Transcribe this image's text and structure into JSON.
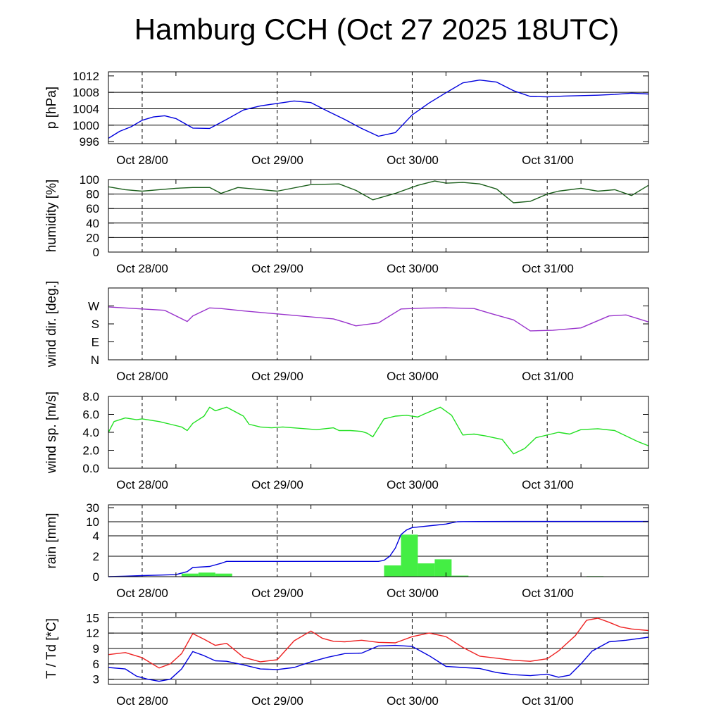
{
  "title": "Hamburg CCH (Oct 27 2025 18UTC)",
  "x_axis": {
    "ticks": [
      "Oct 28/00",
      "Oct 29/00",
      "Oct 30/00",
      "Oct 31/00"
    ],
    "start_hour": 0,
    "end_hour": 96,
    "note": "hours relative to Oct 27 18UTC"
  },
  "chart_data": [
    {
      "id": "pressure",
      "type": "line",
      "ylabel": "p [hPa]",
      "ylim": [
        995.5,
        1013
      ],
      "yticks": [
        996,
        1000,
        1004,
        1008,
        1012
      ],
      "ytick_labels": [
        "996",
        "1000",
        "1004",
        "1008",
        "1012"
      ],
      "hgrid": [
        1000,
        1004,
        1008
      ],
      "color": "#0000dd",
      "x": [
        0,
        2,
        4,
        6,
        8,
        10,
        12,
        15,
        18,
        21,
        24,
        27,
        30,
        33,
        36,
        39,
        42,
        45,
        48,
        51,
        54,
        57,
        60,
        63,
        66,
        69,
        72,
        75,
        78,
        81,
        84,
        87,
        90,
        93,
        96
      ],
      "y": [
        996.8,
        998.5,
        999.6,
        1001.2,
        1002.0,
        1002.3,
        1001.6,
        999.3,
        999.2,
        1001.4,
        1003.7,
        1004.7,
        1005.3,
        1005.9,
        1005.5,
        1003.4,
        1001.4,
        999.2,
        997.3,
        998.2,
        1002.5,
        1005.4,
        1007.9,
        1010.3,
        1011.0,
        1010.5,
        1008.4,
        1007.0,
        1006.9,
        1007.1,
        1007.2,
        1007.3,
        1007.5,
        1007.8,
        1007.6
      ]
    },
    {
      "id": "humidity",
      "type": "line",
      "ylabel": "humidity [%]",
      "ylim": [
        0,
        100
      ],
      "yticks": [
        0,
        20,
        40,
        60,
        80,
        100
      ],
      "ytick_labels": [
        "0",
        "20",
        "40",
        "60",
        "80",
        "100"
      ],
      "hgrid": [
        20,
        40,
        60,
        80
      ],
      "color": "#1a5e1a",
      "x": [
        0,
        3,
        6,
        9,
        12,
        15,
        18,
        20,
        23,
        26,
        30,
        36,
        41,
        44,
        47,
        51,
        55,
        58,
        60,
        63,
        66,
        69,
        72,
        75,
        78,
        80,
        84,
        87,
        90,
        93,
        96
      ],
      "y": [
        90,
        86,
        84,
        86,
        88,
        89,
        89,
        81,
        89,
        87,
        84,
        93,
        94,
        85,
        72,
        81,
        92,
        98,
        95,
        96,
        94,
        87,
        68,
        70,
        80,
        84,
        88,
        84,
        86,
        78,
        92
      ]
    },
    {
      "id": "wind_dir",
      "type": "line",
      "ylabel": "wind dir. [deg.]",
      "ylim": [
        0,
        360
      ],
      "yticks": [
        0,
        90,
        180,
        270
      ],
      "ytick_labels": [
        "N",
        "E",
        "S",
        "W"
      ],
      "hgrid": [],
      "color": "#9933cc",
      "x": [
        0,
        6,
        10,
        14,
        15,
        18,
        20,
        24,
        30,
        36,
        40,
        42,
        44,
        48,
        52,
        56,
        60,
        65,
        68,
        72,
        75,
        79,
        84,
        89,
        92,
        96
      ],
      "y": [
        265,
        255,
        248,
        192,
        220,
        260,
        257,
        245,
        230,
        215,
        205,
        188,
        170,
        185,
        255,
        259,
        261,
        257,
        232,
        200,
        145,
        148,
        160,
        220,
        225,
        190
      ]
    },
    {
      "id": "wind_speed",
      "type": "line",
      "ylabel": "wind sp. [m/s]",
      "ylim": [
        0,
        8
      ],
      "yticks": [
        0,
        2,
        4,
        6,
        8
      ],
      "ytick_labels": [
        "0.0",
        "2.0",
        "4.0",
        "6.0",
        "8.0"
      ],
      "hgrid": [],
      "color": "#22e022",
      "x": [
        0,
        1,
        3,
        5,
        6,
        9,
        11,
        13,
        14,
        15,
        17,
        18,
        19,
        21,
        24,
        25,
        27,
        29,
        31,
        35,
        37,
        40,
        41,
        43,
        45,
        46,
        47,
        48,
        49,
        51,
        53,
        55,
        56,
        59,
        61,
        63,
        65,
        67,
        70,
        72,
        74,
        76,
        80,
        82,
        84,
        87,
        90,
        92,
        94,
        96
      ],
      "y": [
        4.0,
        5.2,
        5.6,
        5.4,
        5.5,
        5.2,
        4.9,
        4.6,
        4.2,
        5.0,
        5.8,
        6.8,
        6.4,
        6.8,
        5.8,
        4.9,
        4.6,
        4.5,
        4.6,
        4.4,
        4.3,
        4.5,
        4.2,
        4.2,
        4.1,
        3.9,
        3.5,
        4.5,
        5.5,
        5.8,
        5.9,
        5.7,
        6.0,
        6.8,
        5.9,
        3.7,
        3.8,
        3.6,
        3.2,
        1.6,
        2.2,
        3.4,
        4.0,
        3.8,
        4.3,
        4.4,
        4.2,
        3.6,
        3.0,
        2.5
      ]
    },
    {
      "id": "rain",
      "type": "bar+line",
      "ylabel": "rain [mm]",
      "ylim": [
        0,
        30
      ],
      "yticks": [
        0,
        2,
        4,
        10,
        30
      ],
      "ytick_labels": [
        "0",
        "2",
        "4",
        "10",
        "30"
      ],
      "hgrid": [
        2,
        4,
        10
      ],
      "bar_color": "#44ee44",
      "line_color": "#0000dd",
      "bars": [
        {
          "x0": 13,
          "x1": 16,
          "value": 0.3
        },
        {
          "x0": 16,
          "x1": 19,
          "value": 0.4
        },
        {
          "x0": 19,
          "x1": 22,
          "value": 0.3
        },
        {
          "x0": 49,
          "x1": 52,
          "value": 1.1
        },
        {
          "x0": 52,
          "x1": 55,
          "value": 4.5
        },
        {
          "x0": 55,
          "x1": 58,
          "value": 1.3
        },
        {
          "x0": 58,
          "x1": 61,
          "value": 1.7
        },
        {
          "x0": 61,
          "x1": 64,
          "value": 0.1
        },
        {
          "x0": 85,
          "x1": 88,
          "value": 0.05
        }
      ],
      "accum_x": [
        0,
        3,
        6,
        9,
        12,
        14,
        15,
        18,
        20,
        21,
        24,
        30,
        36,
        42,
        48,
        49,
        50,
        51,
        52,
        53,
        54,
        56,
        58,
        60,
        62,
        63,
        66,
        72,
        80,
        88,
        96
      ],
      "accum_y": [
        0,
        0.05,
        0.1,
        0.15,
        0.2,
        0.5,
        0.9,
        1.0,
        1.3,
        1.5,
        1.5,
        1.5,
        1.5,
        1.5,
        1.5,
        1.6,
        2.0,
        2.8,
        4.5,
        6.5,
        7.5,
        8.0,
        8.5,
        9.0,
        10.0,
        10.2,
        10.3,
        10.4,
        10.4,
        10.4,
        10.4
      ]
    },
    {
      "id": "temperature",
      "type": "line",
      "ylabel": "T / Td [*C]",
      "ylim": [
        2,
        16
      ],
      "yticks": [
        3,
        6,
        9,
        12,
        15
      ],
      "ytick_labels": [
        "3",
        "6",
        "9",
        "12",
        "15"
      ],
      "hgrid": [
        3,
        6,
        9,
        12,
        15
      ],
      "series": [
        {
          "color": "#ee2222",
          "x": [
            0,
            3,
            6,
            9,
            11,
            13,
            15,
            17,
            19,
            21,
            24,
            27,
            30,
            33,
            36,
            38,
            40,
            42,
            45,
            48,
            51,
            54,
            57,
            60,
            63,
            66,
            69,
            72,
            75,
            78,
            80,
            83,
            85,
            87,
            89,
            91,
            93,
            96
          ],
          "y": [
            7.8,
            8.2,
            7.2,
            5.2,
            6.0,
            8.0,
            11.9,
            10.8,
            9.6,
            10.0,
            7.3,
            6.4,
            6.8,
            10.5,
            12.4,
            11.0,
            10.4,
            10.3,
            10.6,
            10.2,
            10.1,
            11.3,
            12.0,
            11.3,
            9.2,
            7.5,
            7.1,
            6.7,
            6.5,
            7.0,
            8.5,
            11.5,
            14.5,
            14.9,
            14.1,
            13.2,
            12.8,
            12.5
          ]
        },
        {
          "color": "#0000dd",
          "x": [
            0,
            3,
            5,
            7,
            9,
            11,
            13,
            15,
            17,
            19,
            21,
            24,
            27,
            30,
            33,
            36,
            39,
            42,
            45,
            48,
            51,
            54,
            57,
            59,
            60,
            63,
            66,
            69,
            72,
            75,
            78,
            80,
            82,
            84,
            86,
            89,
            92,
            96
          ],
          "y": [
            5.3,
            5.0,
            3.6,
            3.0,
            2.6,
            3.0,
            5.0,
            8.4,
            7.6,
            6.6,
            6.5,
            5.8,
            5.0,
            4.9,
            5.3,
            6.4,
            7.3,
            8.0,
            8.1,
            9.5,
            9.6,
            9.4,
            7.6,
            6.2,
            5.5,
            5.3,
            5.1,
            4.3,
            3.9,
            3.7,
            4.0,
            3.4,
            3.8,
            6.0,
            8.5,
            10.3,
            10.6,
            11.2
          ]
        }
      ]
    }
  ]
}
